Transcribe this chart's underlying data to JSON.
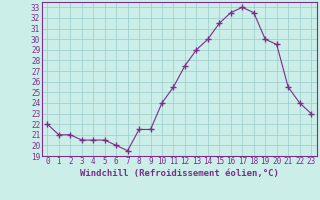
{
  "x": [
    0,
    1,
    2,
    3,
    4,
    5,
    6,
    7,
    8,
    9,
    10,
    11,
    12,
    13,
    14,
    15,
    16,
    17,
    18,
    19,
    20,
    21,
    22,
    23
  ],
  "y": [
    22,
    21,
    21,
    20.5,
    20.5,
    20.5,
    20,
    19.5,
    21.5,
    21.5,
    24,
    25.5,
    27.5,
    29,
    30,
    31.5,
    32.5,
    33,
    32.5,
    30,
    29.5,
    25.5,
    24,
    23
  ],
  "line_color": "#7b2d8b",
  "marker": "+",
  "marker_size": 4,
  "bg_color": "#cceee8",
  "grid_color": "#99cccc",
  "xlabel": "Windchill (Refroidissement éolien,°C)",
  "xlim": [
    -0.5,
    23.5
  ],
  "ylim": [
    19,
    33.5
  ],
  "yticks": [
    19,
    20,
    21,
    22,
    23,
    24,
    25,
    26,
    27,
    28,
    29,
    30,
    31,
    32,
    33
  ],
  "xticks": [
    0,
    1,
    2,
    3,
    4,
    5,
    6,
    7,
    8,
    9,
    10,
    11,
    12,
    13,
    14,
    15,
    16,
    17,
    18,
    19,
    20,
    21,
    22,
    23
  ],
  "axis_color": "#7b2d8b",
  "tick_color": "#7b2d8b",
  "label_color": "#7b2d8b",
  "xlabel_fontsize": 6.5,
  "tick_fontsize": 5.5,
  "lw": 0.8
}
